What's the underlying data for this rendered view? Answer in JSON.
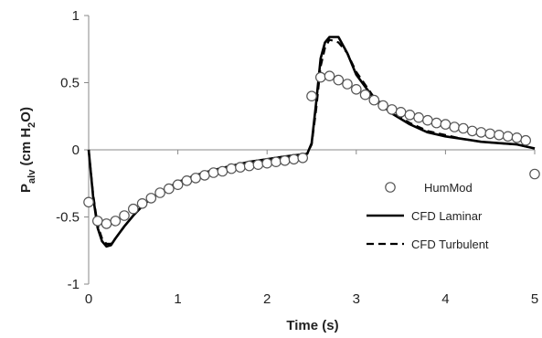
{
  "chart_data": {
    "type": "line",
    "title": "",
    "xlabel": "Time (s)",
    "ylabel": {
      "main": "P",
      "sub": "alv",
      "rest": " (cm H",
      "sub2": "2",
      "end": "O)"
    },
    "xlim": [
      0,
      5
    ],
    "ylim": [
      -1,
      1
    ],
    "xticks": [
      0,
      1,
      2,
      3,
      4,
      5
    ],
    "xtick_labels": [
      "0",
      "1",
      "2",
      "3",
      "4",
      "5"
    ],
    "yticks": [
      1,
      0.5,
      0,
      -0.5,
      -1
    ],
    "ytick_labels": [
      "1",
      "0.5",
      "0",
      "-0.5",
      "-1"
    ],
    "grid": false,
    "legend_position": "right",
    "series": [
      {
        "name": "HumMod",
        "style": "markers-open-circle",
        "x": [
          0,
          0.1,
          0.2,
          0.3,
          0.4,
          0.5,
          0.6,
          0.7,
          0.8,
          0.9,
          1.0,
          1.1,
          1.2,
          1.3,
          1.4,
          1.5,
          1.6,
          1.7,
          1.8,
          1.9,
          2.0,
          2.1,
          2.2,
          2.3,
          2.4,
          2.5,
          2.6,
          2.7,
          2.8,
          2.9,
          3.0,
          3.1,
          3.2,
          3.3,
          3.4,
          3.5,
          3.6,
          3.7,
          3.8,
          3.9,
          4.0,
          4.1,
          4.2,
          4.3,
          4.4,
          4.5,
          4.6,
          4.7,
          4.8,
          4.9,
          5.0
        ],
        "y": [
          -0.39,
          -0.53,
          -0.55,
          -0.53,
          -0.49,
          -0.44,
          -0.4,
          -0.36,
          -0.32,
          -0.29,
          -0.26,
          -0.23,
          -0.21,
          -0.19,
          -0.17,
          -0.16,
          -0.14,
          -0.13,
          -0.12,
          -0.11,
          -0.1,
          -0.09,
          -0.08,
          -0.07,
          -0.06,
          0.4,
          0.54,
          0.55,
          0.52,
          0.49,
          0.45,
          0.41,
          0.37,
          0.33,
          0.3,
          0.28,
          0.26,
          0.24,
          0.22,
          0.2,
          0.19,
          0.17,
          0.16,
          0.14,
          0.13,
          0.12,
          0.11,
          0.1,
          0.09,
          0.07,
          -0.18
        ]
      },
      {
        "name": "CFD Laminar",
        "style": "solid",
        "x": [
          0,
          0.05,
          0.1,
          0.15,
          0.2,
          0.25,
          0.3,
          0.4,
          0.5,
          0.6,
          0.7,
          0.8,
          0.9,
          1.0,
          1.2,
          1.4,
          1.6,
          1.8,
          2.0,
          2.2,
          2.45,
          2.5,
          2.55,
          2.6,
          2.65,
          2.7,
          2.8,
          2.9,
          3.0,
          3.2,
          3.4,
          3.6,
          3.8,
          4.0,
          4.2,
          4.4,
          4.6,
          4.8,
          5.0
        ],
        "y": [
          0.0,
          -0.35,
          -0.58,
          -0.68,
          -0.72,
          -0.71,
          -0.66,
          -0.57,
          -0.49,
          -0.42,
          -0.36,
          -0.32,
          -0.28,
          -0.24,
          -0.19,
          -0.15,
          -0.12,
          -0.09,
          -0.07,
          -0.05,
          -0.03,
          0.05,
          0.35,
          0.68,
          0.8,
          0.84,
          0.84,
          0.72,
          0.56,
          0.38,
          0.27,
          0.19,
          0.13,
          0.1,
          0.08,
          0.06,
          0.05,
          0.04,
          0.01
        ]
      },
      {
        "name": "CFD Turbulent",
        "style": "dashed",
        "x": [
          0,
          0.05,
          0.1,
          0.15,
          0.2,
          0.25,
          0.3,
          0.4,
          0.5,
          0.6,
          0.7,
          0.8,
          0.9,
          1.0,
          1.2,
          1.4,
          1.6,
          1.8,
          2.0,
          2.2,
          2.45,
          2.5,
          2.55,
          2.6,
          2.65,
          2.7,
          2.8,
          2.9,
          3.0,
          3.2,
          3.4,
          3.6,
          3.8,
          4.0,
          4.2,
          4.4,
          4.6,
          4.8,
          5.0
        ],
        "y": [
          0.0,
          -0.33,
          -0.56,
          -0.66,
          -0.7,
          -0.7,
          -0.66,
          -0.57,
          -0.49,
          -0.42,
          -0.36,
          -0.32,
          -0.28,
          -0.24,
          -0.19,
          -0.15,
          -0.12,
          -0.09,
          -0.07,
          -0.05,
          -0.03,
          0.04,
          0.3,
          0.62,
          0.76,
          0.82,
          0.8,
          0.72,
          0.58,
          0.39,
          0.28,
          0.2,
          0.14,
          0.11,
          0.08,
          0.06,
          0.05,
          0.04,
          0.01
        ]
      }
    ]
  }
}
